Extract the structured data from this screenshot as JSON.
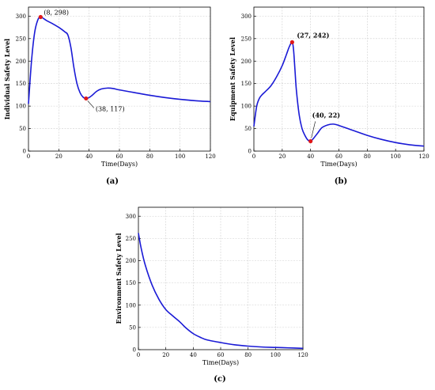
{
  "chart_data": [
    {
      "type": "line",
      "panel_label": "(a)",
      "xlabel": "Time(Days)",
      "ylabel": "Individual Safety Level",
      "xlim": [
        0,
        120
      ],
      "ylim": [
        0,
        320
      ],
      "xticks": [
        "0",
        "20",
        "40",
        "60",
        "80",
        "100",
        "120"
      ],
      "yticks": [
        "0",
        "50",
        "100",
        "150",
        "200",
        "250",
        "300"
      ],
      "grid": true,
      "series": [
        {
          "color": "#1a1ad6",
          "x": [
            0,
            2,
            4,
            6,
            8,
            12,
            16,
            20,
            24,
            26,
            28,
            30,
            32,
            34,
            36,
            38,
            40,
            42,
            45,
            48,
            52,
            56,
            60,
            70,
            80,
            90,
            100,
            110,
            120
          ],
          "y": [
            105,
            200,
            262,
            290,
            298,
            290,
            283,
            275,
            265,
            258,
            230,
            185,
            150,
            130,
            120,
            117,
            119,
            124,
            133,
            138,
            140,
            139,
            136,
            130,
            124,
            119,
            115,
            112,
            110
          ]
        }
      ],
      "annotations": [
        {
          "x": 8,
          "y": 298,
          "text": "(8, 298)"
        },
        {
          "x": 38,
          "y": 117,
          "text": "(38, 117)"
        }
      ]
    },
    {
      "type": "line",
      "panel_label": "(b)",
      "xlabel": "Time(Days)",
      "ylabel": "Equipment Safety Level",
      "xlim": [
        0,
        120
      ],
      "ylim": [
        0,
        320
      ],
      "xticks": [
        "0",
        "20",
        "40",
        "60",
        "80",
        "100",
        "120"
      ],
      "yticks": [
        "0",
        "50",
        "100",
        "150",
        "200",
        "250",
        "300"
      ],
      "grid": true,
      "series": [
        {
          "color": "#1a1ad6",
          "x": [
            0,
            2,
            4,
            6,
            8,
            12,
            16,
            20,
            23,
            25,
            27,
            28,
            29,
            30,
            32,
            34,
            36,
            38,
            40,
            42,
            45,
            48,
            52,
            56,
            60,
            70,
            80,
            90,
            100,
            110,
            120
          ],
          "y": [
            55,
            100,
            118,
            126,
            132,
            145,
            165,
            190,
            215,
            232,
            242,
            225,
            180,
            135,
            80,
            50,
            35,
            25,
            22,
            28,
            40,
            52,
            58,
            60,
            57,
            46,
            35,
            26,
            19,
            14,
            11
          ]
        }
      ],
      "annotations": [
        {
          "x": 27,
          "y": 242,
          "text": "(27, 242)"
        },
        {
          "x": 40,
          "y": 22,
          "text": "(40, 22)"
        }
      ]
    },
    {
      "type": "line",
      "panel_label": "(c)",
      "xlabel": "Time(Days)",
      "ylabel": "Environment Safety Level",
      "xlim": [
        0,
        120
      ],
      "ylim": [
        0,
        320
      ],
      "xticks": [
        "0",
        "20",
        "40",
        "60",
        "80",
        "100",
        "120"
      ],
      "yticks": [
        "0",
        "50",
        "100",
        "150",
        "200",
        "250",
        "300"
      ],
      "grid": true,
      "series": [
        {
          "color": "#1a1ad6",
          "x": [
            0,
            2,
            5,
            10,
            15,
            20,
            25,
            30,
            35,
            40,
            45,
            50,
            60,
            70,
            80,
            90,
            100,
            110,
            120
          ],
          "y": [
            262,
            228,
            190,
            145,
            113,
            90,
            76,
            63,
            48,
            36,
            28,
            22,
            16,
            11,
            8,
            6,
            5,
            4,
            3
          ]
        }
      ],
      "annotations": []
    }
  ]
}
